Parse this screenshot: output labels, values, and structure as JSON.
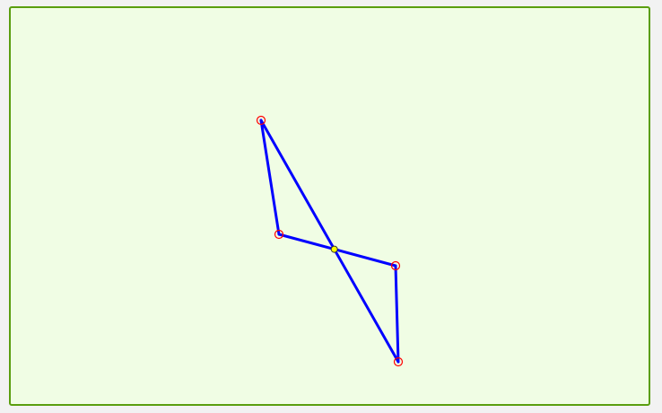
{
  "canvas": {
    "background": "#f0fde4",
    "border_color": "#5a9e0f"
  },
  "style": {
    "segment_color": "#0000ff",
    "vertex_color": "#ff0000",
    "intersection_color": "#ffff00",
    "intersection_outline": "#333333"
  },
  "vertices": [
    {
      "id": "A"
    },
    {
      "id": "B"
    },
    {
      "id": "C"
    },
    {
      "id": "D"
    }
  ],
  "segments": [
    {
      "from": "A",
      "to": "B"
    },
    {
      "from": "A",
      "to": "D"
    },
    {
      "from": "B",
      "to": "C"
    },
    {
      "from": "C",
      "to": "D"
    }
  ],
  "intersection": {
    "segments": [
      "A-D",
      "B-C"
    ]
  }
}
